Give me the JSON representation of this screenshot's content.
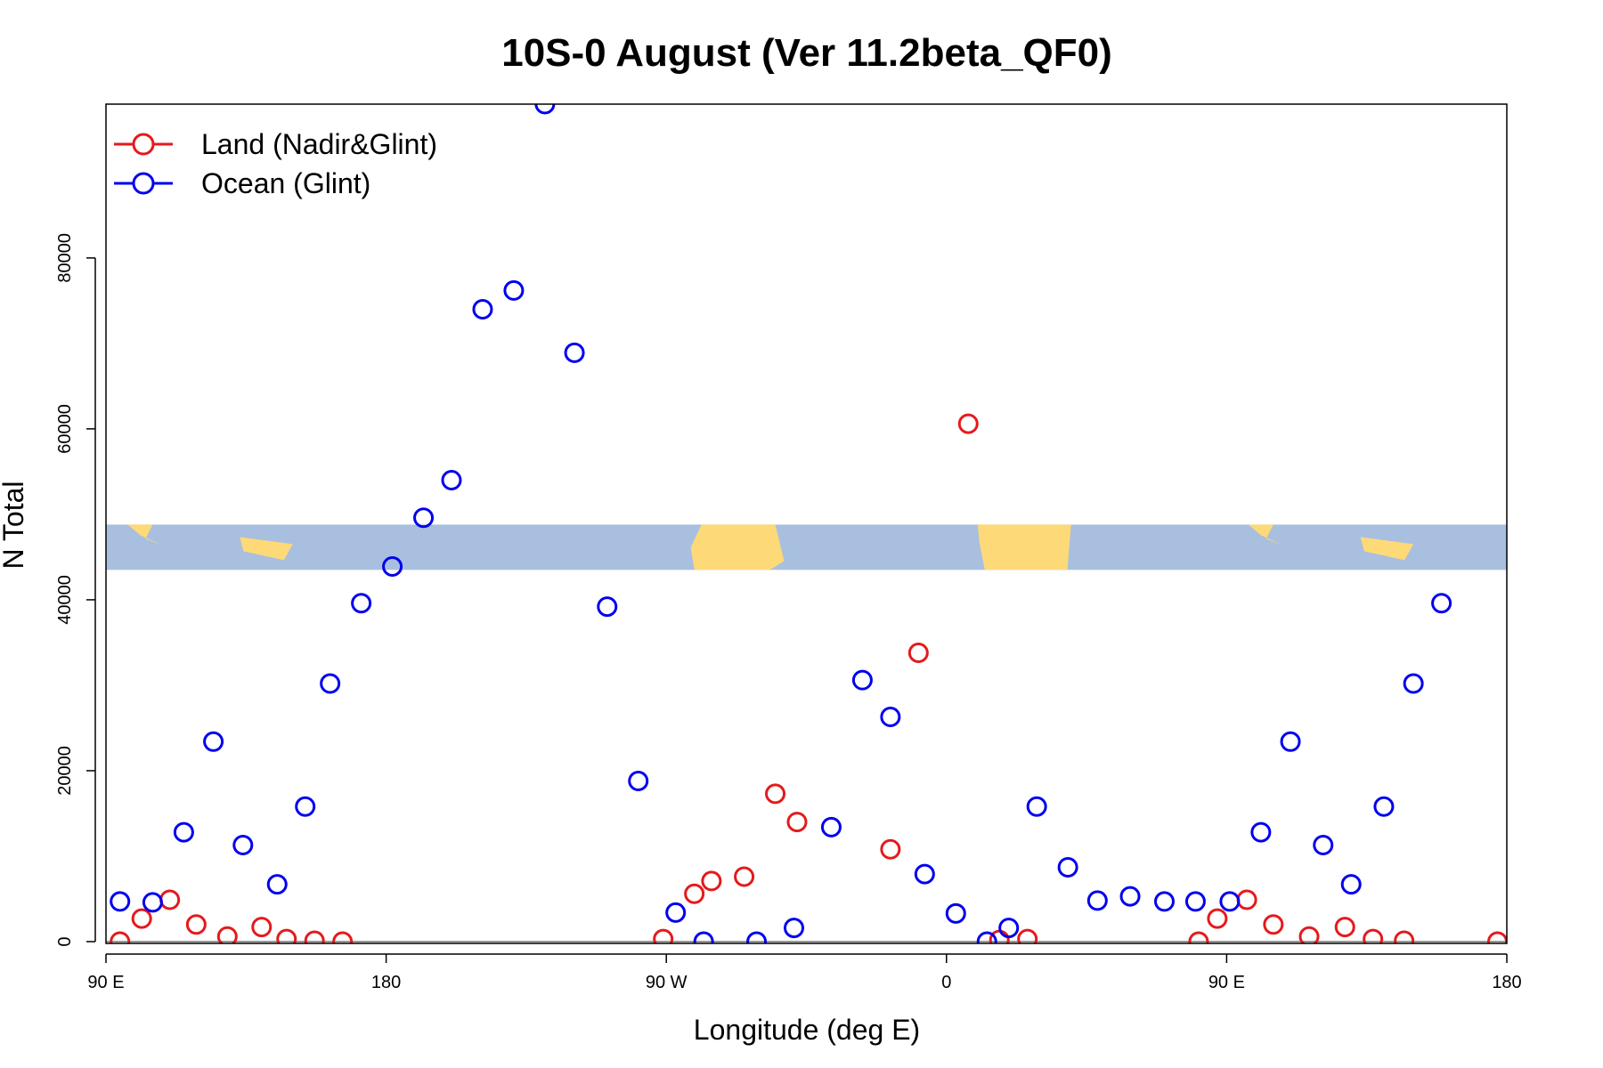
{
  "chart_data": {
    "type": "scatter",
    "title": "10S-0 August (Ver 11.2beta_QF0)",
    "xlabel": "Longitude (deg E)",
    "ylabel": "N Total",
    "xlim": [
      90,
      540
    ],
    "ylim": [
      0,
      98000
    ],
    "x_ticks": [
      {
        "value": 90,
        "label": "90 E"
      },
      {
        "value": 180,
        "label": "180"
      },
      {
        "value": 270,
        "label": "90 W"
      },
      {
        "value": 360,
        "label": "0"
      },
      {
        "value": 450,
        "label": "90 E"
      },
      {
        "value": 540,
        "label": "180"
      }
    ],
    "y_ticks": [
      {
        "value": 0,
        "label": "0"
      },
      {
        "value": 20000,
        "label": "20000"
      },
      {
        "value": 40000,
        "label": "40000"
      },
      {
        "value": 60000,
        "label": "60000"
      },
      {
        "value": 80000,
        "label": "80000"
      }
    ],
    "map_band": {
      "y_range": [
        43500,
        48800
      ],
      "ocean_color": "#a8bfdf",
      "land_color": "#fdd978"
    },
    "legend_position": "top-left",
    "series": [
      {
        "name": "Land (Nadir&Glint)",
        "color": "#e41a1c",
        "x": [
          94.5,
          101.5,
          110.5,
          119,
          129,
          140,
          148,
          157,
          166,
          269,
          279,
          284.5,
          295,
          305,
          312,
          342,
          351,
          367,
          377,
          386,
          441,
          447,
          456.5,
          465,
          476.5,
          488,
          497,
          507,
          537
        ],
        "y": [
          0,
          2700,
          4900,
          2000,
          600,
          1700,
          300,
          100,
          0,
          300,
          5600,
          7100,
          7600,
          17300,
          14000,
          10800,
          33800,
          60600,
          200,
          300,
          0,
          2700,
          4900,
          2000,
          600,
          1700,
          300,
          100,
          0
        ]
      },
      {
        "name": "Ocean (Glint)",
        "color": "#0000ee",
        "x": [
          94.5,
          105,
          115,
          124.5,
          134,
          145,
          154,
          162,
          172,
          182,
          192,
          201,
          211,
          221,
          231,
          240.5,
          251,
          261,
          273,
          282,
          299,
          311,
          323,
          333,
          342,
          353,
          363,
          373,
          380,
          389,
          399,
          408.5,
          419,
          430,
          440,
          451,
          461,
          470.5,
          481,
          490,
          500.5,
          510,
          519
        ],
        "y": [
          4700,
          4600,
          12800,
          23400,
          11300,
          6700,
          15800,
          30200,
          39600,
          43900,
          49600,
          54000,
          74000,
          76200,
          98000,
          68900,
          39200,
          18800,
          3400,
          0,
          0,
          1600,
          13400,
          30600,
          26300,
          7900,
          3300,
          0,
          1600,
          15800,
          8700,
          4800,
          5300,
          4700,
          4700,
          4700,
          12800,
          23400,
          11300,
          6700,
          15800,
          30200,
          39600
        ]
      }
    ]
  }
}
